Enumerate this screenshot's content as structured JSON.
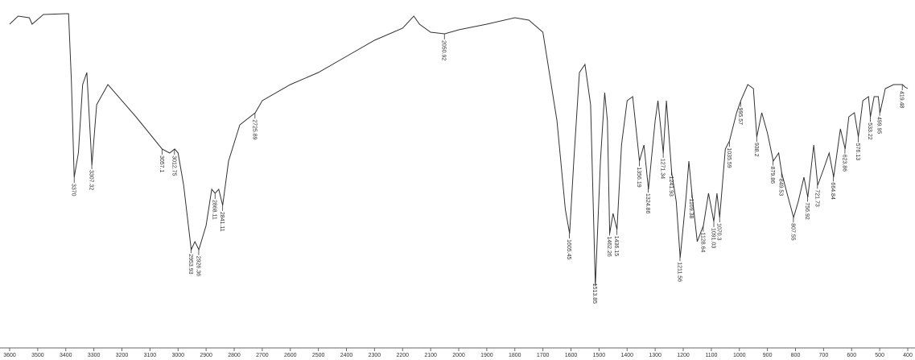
{
  "chart_data": {
    "type": "line",
    "x": [
      3600,
      3570,
      3530,
      3520,
      3480,
      3400,
      3390,
      3380,
      3370,
      3355,
      3340,
      3325,
      3307,
      3290,
      3250,
      3150,
      3080,
      3057,
      3030,
      3012,
      3000,
      2980,
      2953,
      2940,
      2926,
      2900,
      2880,
      2868,
      2855,
      2841,
      2820,
      2780,
      2725,
      2700,
      2600,
      2500,
      2400,
      2300,
      2200,
      2160,
      2140,
      2100,
      2050,
      2000,
      1900,
      1800,
      1750,
      1700,
      1650,
      1620,
      1605,
      1590,
      1570,
      1550,
      1530,
      1513,
      1495,
      1480,
      1470,
      1462,
      1450,
      1436,
      1420,
      1400,
      1380,
      1356,
      1340,
      1324,
      1300,
      1290,
      1271,
      1260,
      1241,
      1225,
      1211,
      1190,
      1180,
      1169,
      1150,
      1128,
      1110,
      1091,
      1080,
      1070,
      1050,
      1035,
      1010,
      995,
      970,
      950,
      938,
      920,
      900,
      879,
      860,
      849,
      830,
      807,
      790,
      770,
      756,
      735,
      721,
      700,
      680,
      664,
      640,
      623,
      610,
      590,
      576,
      560,
      540,
      533,
      520,
      505,
      499,
      480,
      450,
      419,
      410,
      400
    ],
    "series": [
      {
        "color": "#333333",
        "values": [
          400,
          410,
          408,
          400,
          412,
          413,
          413,
          330,
          210,
          240,
          325,
          340,
          225,
          300,
          325,
          285,
          255,
          245,
          240,
          245,
          240,
          200,
          120,
          130,
          120,
          150,
          195,
          190,
          195,
          175,
          230,
          275,
          290,
          305,
          325,
          340,
          360,
          380,
          395,
          410,
          400,
          390,
          388,
          393,
          400,
          408,
          405,
          390,
          280,
          170,
          140,
          230,
          340,
          350,
          300,
          75,
          230,
          315,
          280,
          140,
          165,
          145,
          250,
          305,
          310,
          230,
          250,
          195,
          280,
          305,
          240,
          305,
          215,
          180,
          110,
          185,
          230,
          190,
          130,
          150,
          190,
          155,
          190,
          160,
          245,
          255,
          290,
          305,
          325,
          320,
          260,
          290,
          265,
          230,
          240,
          215,
          190,
          160,
          180,
          210,
          185,
          250,
          200,
          220,
          240,
          210,
          270,
          245,
          285,
          290,
          260,
          305,
          310,
          285,
          310,
          310,
          290,
          320,
          325,
          325,
          322,
          320
        ]
      }
    ],
    "peaks": [
      3370,
      3307.32,
      3057.1,
      3012.75,
      2953.93,
      2926.36,
      2868.11,
      2841.11,
      2725.89,
      2050.92,
      1605.45,
      1513.85,
      1462.26,
      1436.15,
      1356.19,
      1324.86,
      1271.34,
      1241.93,
      1211.56,
      1169.38,
      1128.64,
      1091.03,
      1070.3,
      1035.59,
      995.57,
      938.2,
      879.86,
      849.53,
      807.55,
      756.92,
      721.73,
      664.84,
      623.86,
      576.13,
      533.22,
      499.95,
      419.48
    ],
    "xlim": [
      3600,
      400
    ],
    "xticks": [
      3600,
      3500,
      3400,
      3300,
      3200,
      3100,
      3000,
      2900,
      2800,
      2700,
      2600,
      2500,
      2400,
      2300,
      2200,
      2100,
      2000,
      1900,
      1800,
      1700,
      1600,
      1500,
      1400,
      1300,
      1200,
      1100,
      1000,
      900,
      800,
      700,
      600,
      500,
      400
    ],
    "ylim": [
      0,
      420
    ]
  }
}
